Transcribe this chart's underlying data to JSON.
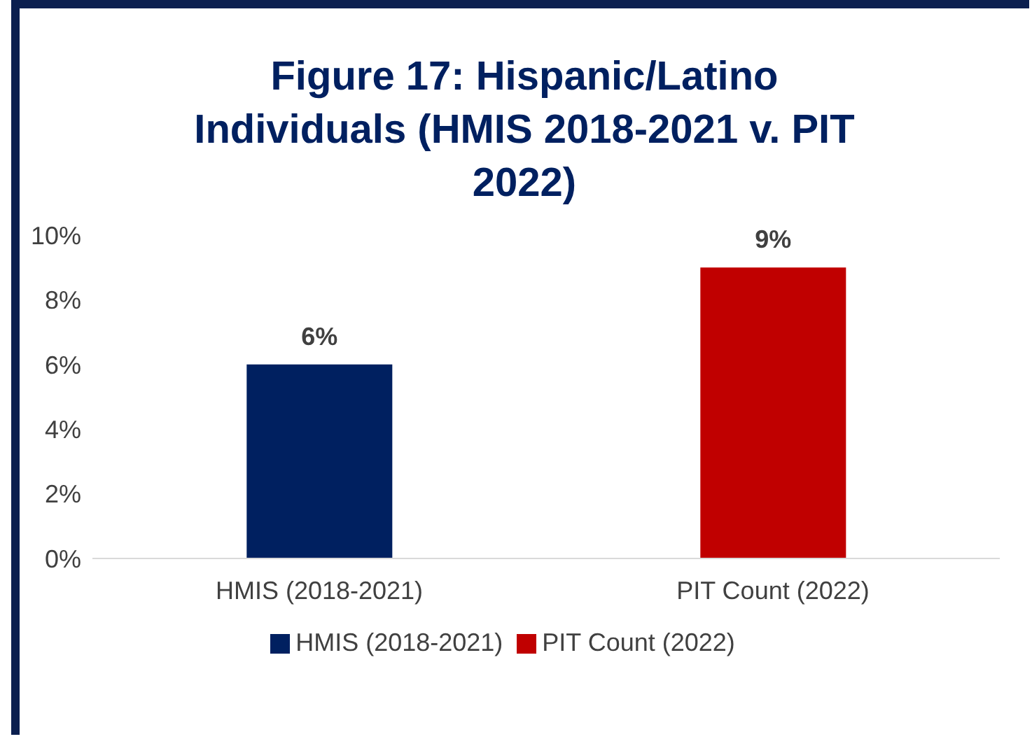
{
  "chart_data": {
    "type": "bar",
    "title": "Figure 17: Hispanic/Latino Individuals (HMIS 2018-2021 v. PIT 2022)",
    "categories": [
      "HMIS (2018-2021)",
      "PIT Count (2022)"
    ],
    "series": [
      {
        "name": "HMIS (2018-2021)",
        "color": "#002060",
        "values": [
          6,
          null
        ],
        "value_labels": [
          "6%",
          null
        ]
      },
      {
        "name": "PIT Count (2022)",
        "color": "#c00000",
        "values": [
          null,
          9
        ],
        "value_labels": [
          null,
          "9%"
        ]
      }
    ],
    "ylim": [
      0,
      10
    ],
    "yticks": [
      {
        "value": 0,
        "label": "0%"
      },
      {
        "value": 2,
        "label": "2%"
      },
      {
        "value": 4,
        "label": "4%"
      },
      {
        "value": 6,
        "label": "6%"
      },
      {
        "value": 8,
        "label": "8%"
      },
      {
        "value": 10,
        "label": "10%"
      }
    ],
    "grid": false,
    "legend": "bottom"
  }
}
